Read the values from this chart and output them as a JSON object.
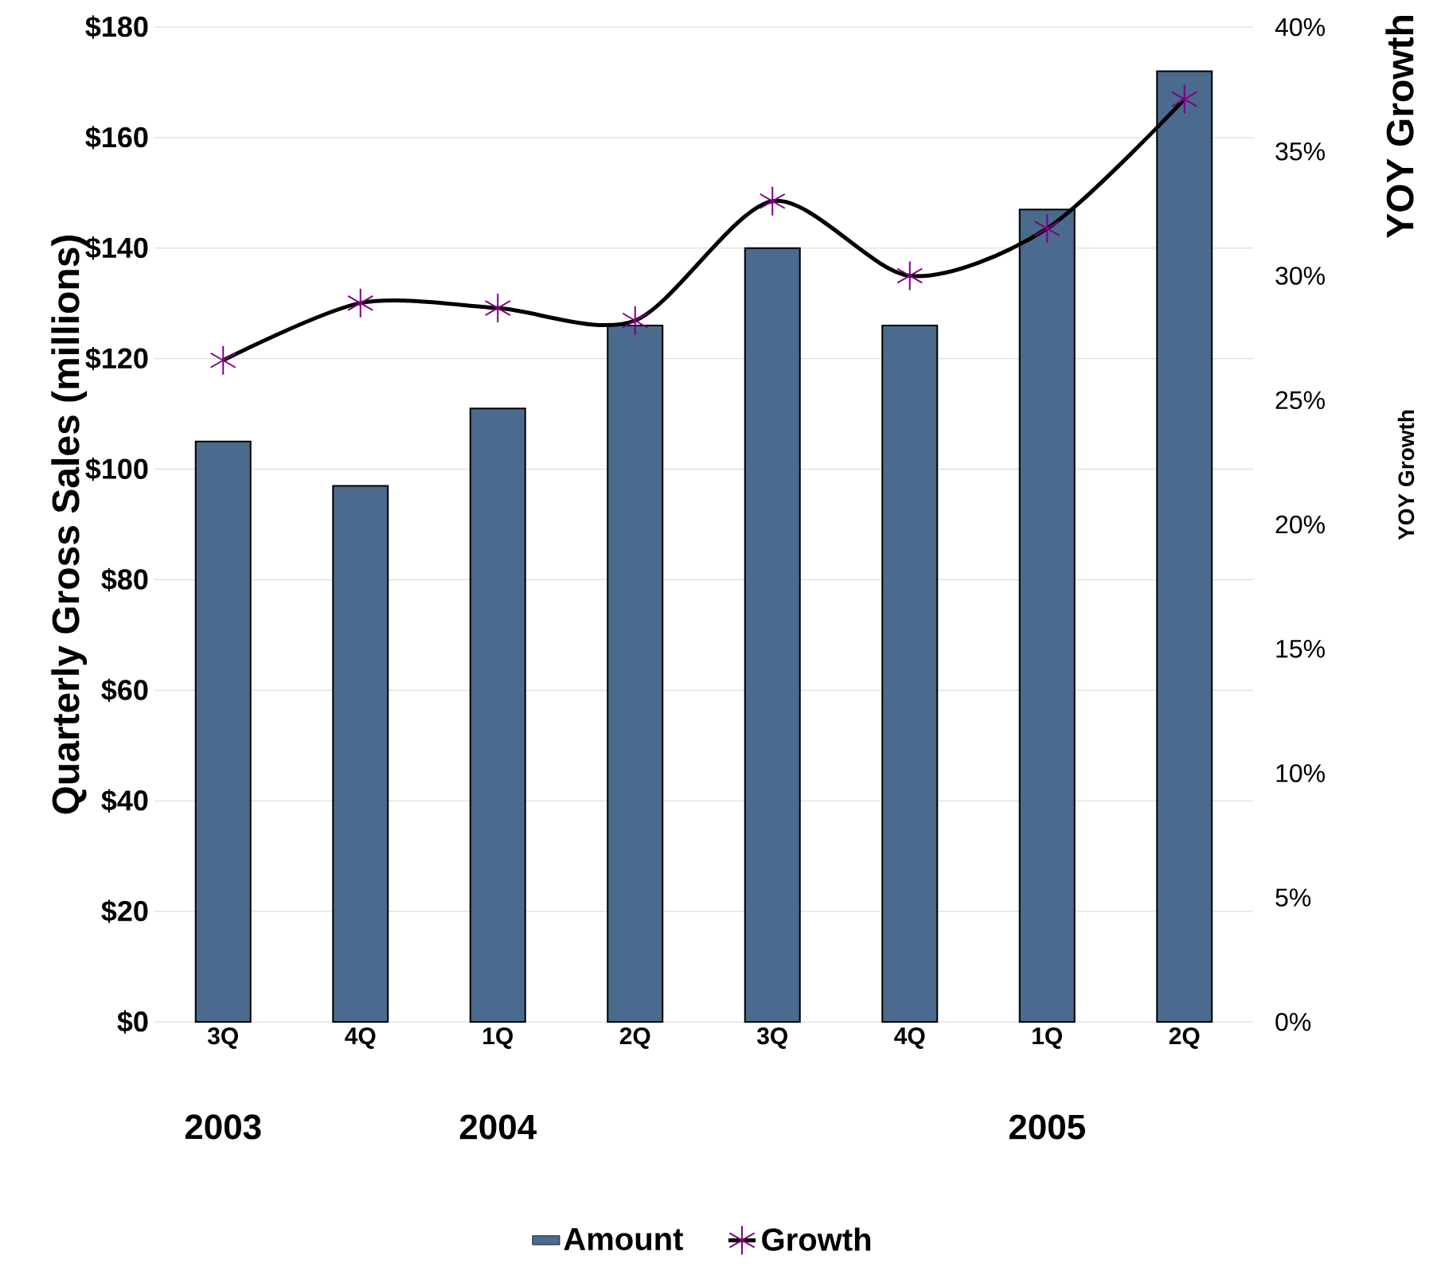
{
  "chart_data": {
    "type": "bar",
    "categories": [
      "3Q",
      "4Q",
      "1Q",
      "2Q",
      "3Q",
      "4Q",
      "1Q",
      "2Q"
    ],
    "ylabel": "Quarterly Gross Sales (millions)",
    "y2label": "YOY Growth",
    "series": [
      {
        "name": "Amount",
        "color": "#4a6a8e",
        "values": [
          105,
          97,
          111,
          126,
          140,
          126,
          147,
          172
        ]
      },
      {
        "name": "Growth",
        "type": "line",
        "axis": "y2",
        "color": "#000000",
        "marker": "cross",
        "values": [
          26.6,
          28.9,
          28.7,
          28.2,
          33.0,
          30.0,
          31.9,
          37.1
        ]
      }
    ],
    "ylim": [
      0,
      180
    ],
    "yticks": [
      {
        "value": 0,
        "label": "$0"
      },
      {
        "value": 20,
        "label": "$20"
      },
      {
        "value": 40,
        "label": "$40"
      },
      {
        "value": 60,
        "label": "$60"
      },
      {
        "value": 80,
        "label": "$80"
      },
      {
        "value": 100,
        "label": "$100"
      },
      {
        "value": 120,
        "label": "$120"
      },
      {
        "value": 140,
        "label": "$140"
      },
      {
        "value": 160,
        "label": "$160"
      },
      {
        "value": 180,
        "label": "$180"
      }
    ],
    "y2lim": [
      0,
      40
    ],
    "y2ticks": [
      {
        "value": 0,
        "label": "0%"
      },
      {
        "value": 5,
        "label": "5%"
      },
      {
        "value": 10,
        "label": "10%"
      },
      {
        "value": 15,
        "label": "15%"
      },
      {
        "value": 20,
        "label": "20%"
      },
      {
        "value": 25,
        "label": "25%"
      },
      {
        "value": 30,
        "label": "30%"
      },
      {
        "value": 35,
        "label": "35%"
      },
      {
        "value": 40,
        "label": "40%"
      }
    ],
    "annotations": [
      "2003",
      "2004",
      "2005",
      "YOY Growth"
    ],
    "grid": "y",
    "legend": "bottom"
  }
}
